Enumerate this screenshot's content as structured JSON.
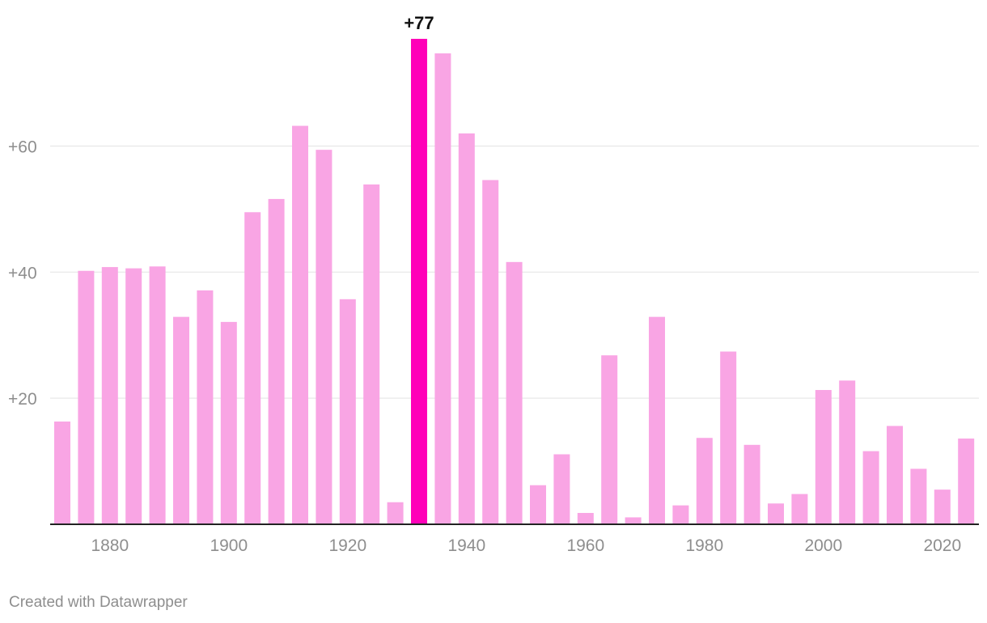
{
  "chart_data": {
    "type": "bar",
    "title": "",
    "xlabel": "",
    "ylabel": "",
    "x": [
      1872,
      1876,
      1880,
      1884,
      1888,
      1892,
      1896,
      1900,
      1904,
      1908,
      1912,
      1916,
      1920,
      1924,
      1928,
      1932,
      1936,
      1940,
      1944,
      1948,
      1952,
      1956,
      1960,
      1964,
      1968,
      1972,
      1976,
      1980,
      1984,
      1988,
      1992,
      1996,
      2000,
      2004,
      2008,
      2012,
      2016,
      2020,
      2024
    ],
    "values": [
      16.3,
      40.2,
      40.8,
      40.6,
      40.9,
      32.9,
      37.1,
      32.1,
      49.5,
      51.6,
      63.2,
      59.4,
      35.7,
      53.9,
      3.5,
      77.0,
      74.7,
      62.0,
      54.6,
      41.6,
      6.2,
      11.1,
      1.8,
      26.8,
      1.1,
      32.9,
      3.0,
      13.7,
      27.4,
      12.6,
      3.3,
      4.8,
      21.3,
      22.8,
      11.6,
      15.6,
      8.8,
      5.5,
      13.6
    ],
    "highlight_index": 15,
    "bar_color": "#f9a5e4",
    "highlight_color": "#ff00b8",
    "ylim": [
      0,
      77
    ],
    "y_ticks": [
      20,
      40,
      60
    ],
    "y_tick_labels": [
      "+20",
      "+40",
      "+60"
    ],
    "x_ticks": [
      1880,
      1900,
      1920,
      1940,
      1960,
      1980,
      2000,
      2020
    ],
    "x_tick_labels": [
      "1880",
      "1900",
      "1920",
      "1940",
      "1960",
      "1980",
      "2000",
      "2020"
    ],
    "data_labels": [
      {
        "index": 15,
        "text": "+77"
      }
    ],
    "grid": true
  },
  "footer": {
    "credit": "Created with Datawrapper"
  }
}
